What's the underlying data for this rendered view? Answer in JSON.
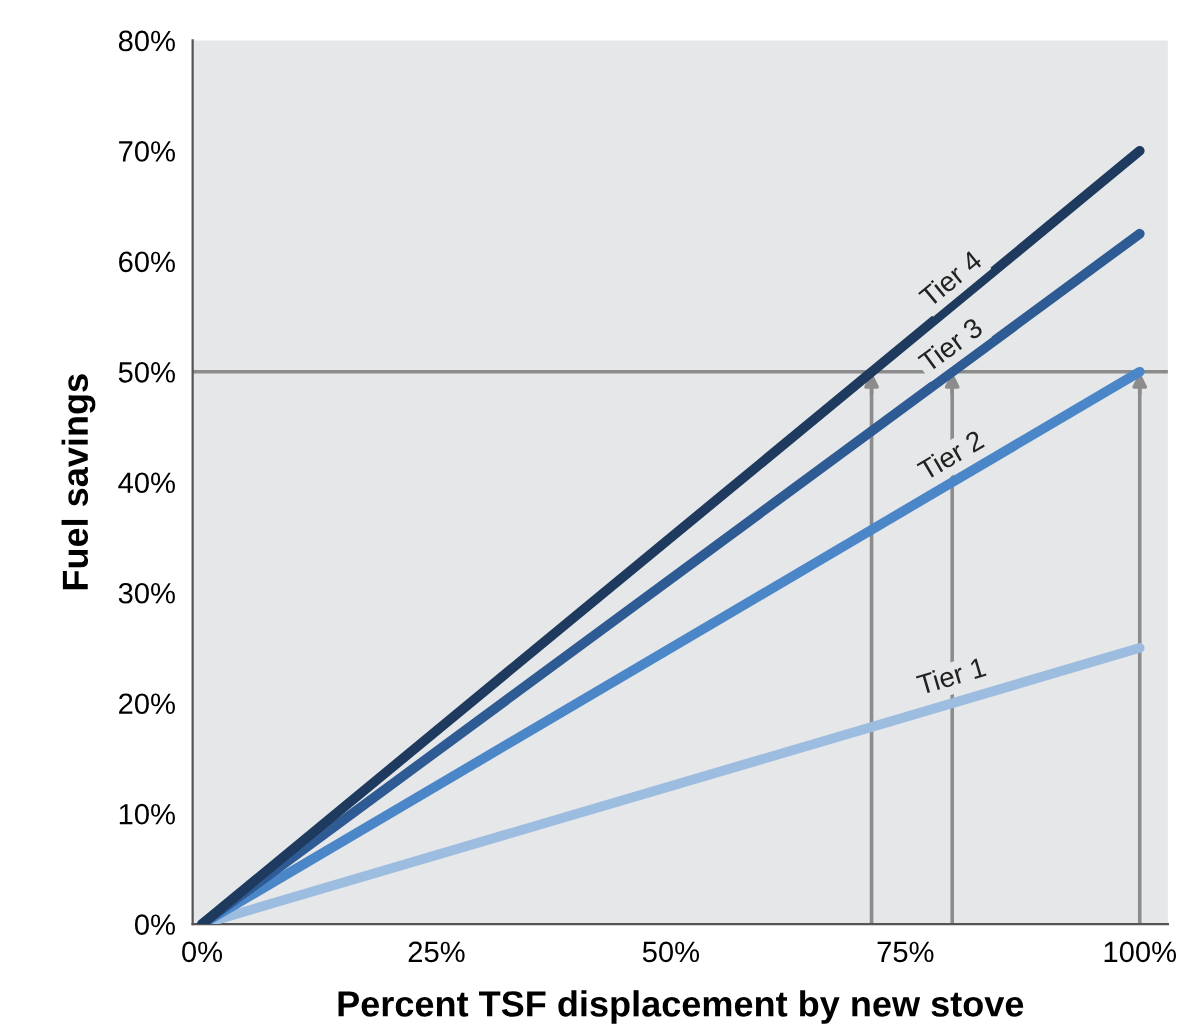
{
  "chart_data": {
    "type": "line",
    "xlabel": "Percent TSF displacement by new stove",
    "ylabel": "Fuel savings",
    "x": [
      0,
      100
    ],
    "series": [
      {
        "name": "Tier 1",
        "color": "#9dbde0",
        "values": [
          0,
          25
        ]
      },
      {
        "name": "Tier 2",
        "color": "#4a86c8",
        "values": [
          0,
          50
        ]
      },
      {
        "name": "Tier 3",
        "color": "#2e5b93",
        "values": [
          0,
          62.5
        ]
      },
      {
        "name": "Tier 4",
        "color": "#1f3a5f",
        "values": [
          0,
          70
        ]
      }
    ],
    "xlim": [
      -1,
      103
    ],
    "ylim": [
      0,
      80
    ],
    "xticks": [
      {
        "value": 0,
        "label": "0%"
      },
      {
        "value": 25,
        "label": "25%"
      },
      {
        "value": 50,
        "label": "50%"
      },
      {
        "value": 75,
        "label": "75%"
      },
      {
        "value": 100,
        "label": "100%"
      }
    ],
    "yticks": [
      {
        "value": 0,
        "label": "0%"
      },
      {
        "value": 10,
        "label": "10%"
      },
      {
        "value": 20,
        "label": "20%"
      },
      {
        "value": 30,
        "label": "30%"
      },
      {
        "value": 40,
        "label": "40%"
      },
      {
        "value": 50,
        "label": "50%"
      },
      {
        "value": 60,
        "label": "60%"
      },
      {
        "value": 70,
        "label": "70%"
      },
      {
        "value": 80,
        "label": "80%"
      }
    ],
    "ref_lines": [
      {
        "axis": "y",
        "value": 50,
        "color": "#8c8c8c"
      },
      {
        "axis": "x",
        "value": 71.4,
        "color": "#8c8c8c"
      },
      {
        "axis": "x",
        "value": 80,
        "color": "#8c8c8c"
      },
      {
        "axis": "x",
        "value": 100,
        "color": "#8c8c8c"
      }
    ],
    "grid": false,
    "legend": false,
    "marker": "none",
    "line_style": "solid"
  }
}
